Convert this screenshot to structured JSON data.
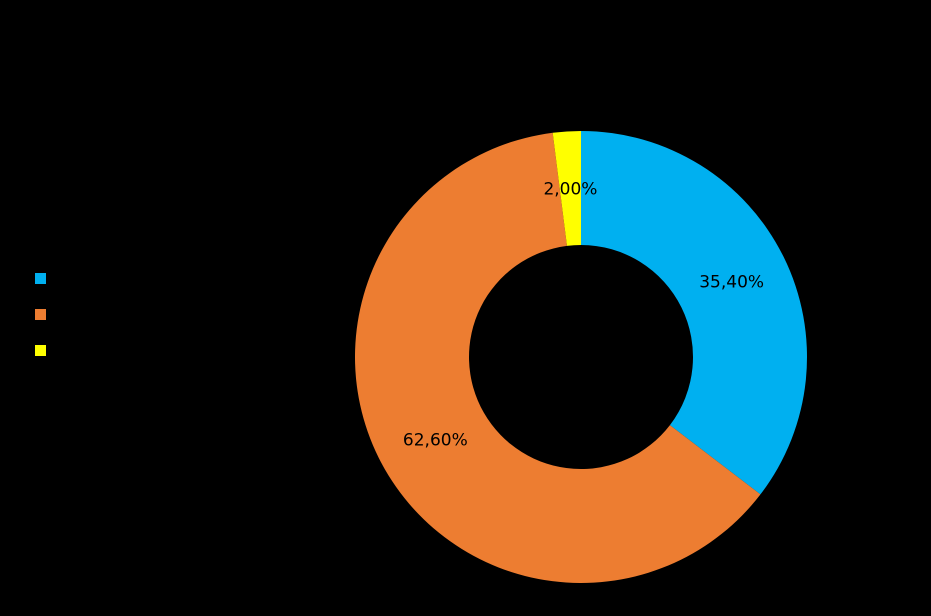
{
  "chart_data": {
    "type": "donut",
    "values": [
      35.4,
      62.6,
      2.0
    ],
    "value_labels": [
      "35,40%",
      "62,60%",
      "2,00%"
    ],
    "colors": [
      "#00b0f0",
      "#ed7d31",
      "#ffff00"
    ]
  }
}
